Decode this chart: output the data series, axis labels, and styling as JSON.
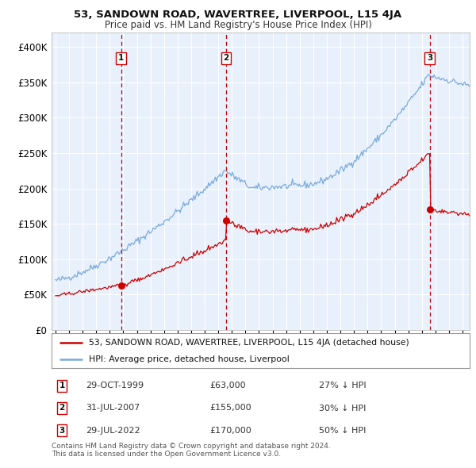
{
  "title": "53, SANDOWN ROAD, WAVERTREE, LIVERPOOL, L15 4JA",
  "subtitle": "Price paid vs. HM Land Registry's House Price Index (HPI)",
  "background_color": "#ffffff",
  "plot_bg_color": "#e8f0fc",
  "grid_color": "#ffffff",
  "hpi_color": "#7aaadd",
  "price_color": "#cc0000",
  "sale_vline_color": "#cc0000",
  "ylim": [
    0,
    420000
  ],
  "yticks": [
    0,
    50000,
    100000,
    150000,
    200000,
    250000,
    300000,
    350000,
    400000
  ],
  "ytick_labels": [
    "£0",
    "£50K",
    "£100K",
    "£150K",
    "£200K",
    "£250K",
    "£300K",
    "£350K",
    "£400K"
  ],
  "sales": [
    {
      "date_num": 1999.83,
      "price": 63000,
      "label": "1"
    },
    {
      "date_num": 2007.58,
      "price": 155000,
      "label": "2"
    },
    {
      "date_num": 2022.58,
      "price": 170000,
      "label": "3"
    }
  ],
  "sale_table": [
    {
      "num": "1",
      "date": "29-OCT-1999",
      "price": "£63,000",
      "hpi": "27% ↓ HPI"
    },
    {
      "num": "2",
      "date": "31-JUL-2007",
      "price": "£155,000",
      "hpi": "30% ↓ HPI"
    },
    {
      "num": "3",
      "date": "29-JUL-2022",
      "price": "£170,000",
      "hpi": "50% ↓ HPI"
    }
  ],
  "legend_entries": [
    "53, SANDOWN ROAD, WAVERTREE, LIVERPOOL, L15 4JA (detached house)",
    "HPI: Average price, detached house, Liverpool"
  ],
  "footer": "Contains HM Land Registry data © Crown copyright and database right 2024.\nThis data is licensed under the Open Government Licence v3.0.",
  "xmin": 1994.7,
  "xmax": 2025.5
}
